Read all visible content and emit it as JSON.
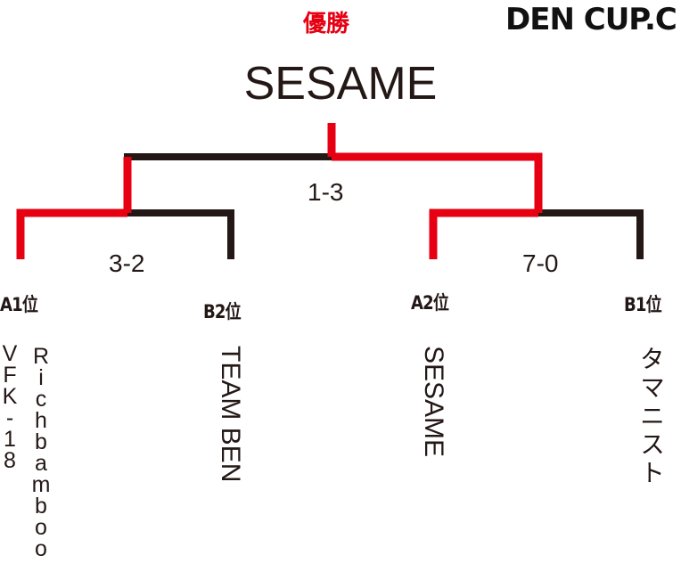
{
  "header": {
    "winner_label": "優勝",
    "logo_text": "DEN CUP.C"
  },
  "champion": "SESAME",
  "matches": {
    "final": {
      "score": "1-3"
    },
    "semi_left": {
      "score": "3-2"
    },
    "semi_right": {
      "score": "7-0"
    }
  },
  "teams": [
    {
      "seed": "A1位",
      "name_line1": "VFK-18",
      "name_line2": "Richbamboo"
    },
    {
      "seed": "B2位",
      "name": "TEAM BEN"
    },
    {
      "seed": "A2位",
      "name": "SESAME"
    },
    {
      "seed": "B1位",
      "name": "タマニスト"
    }
  ],
  "colors": {
    "winner_path": "#e60012",
    "loser_path": "#231815",
    "text": "#231815"
  }
}
